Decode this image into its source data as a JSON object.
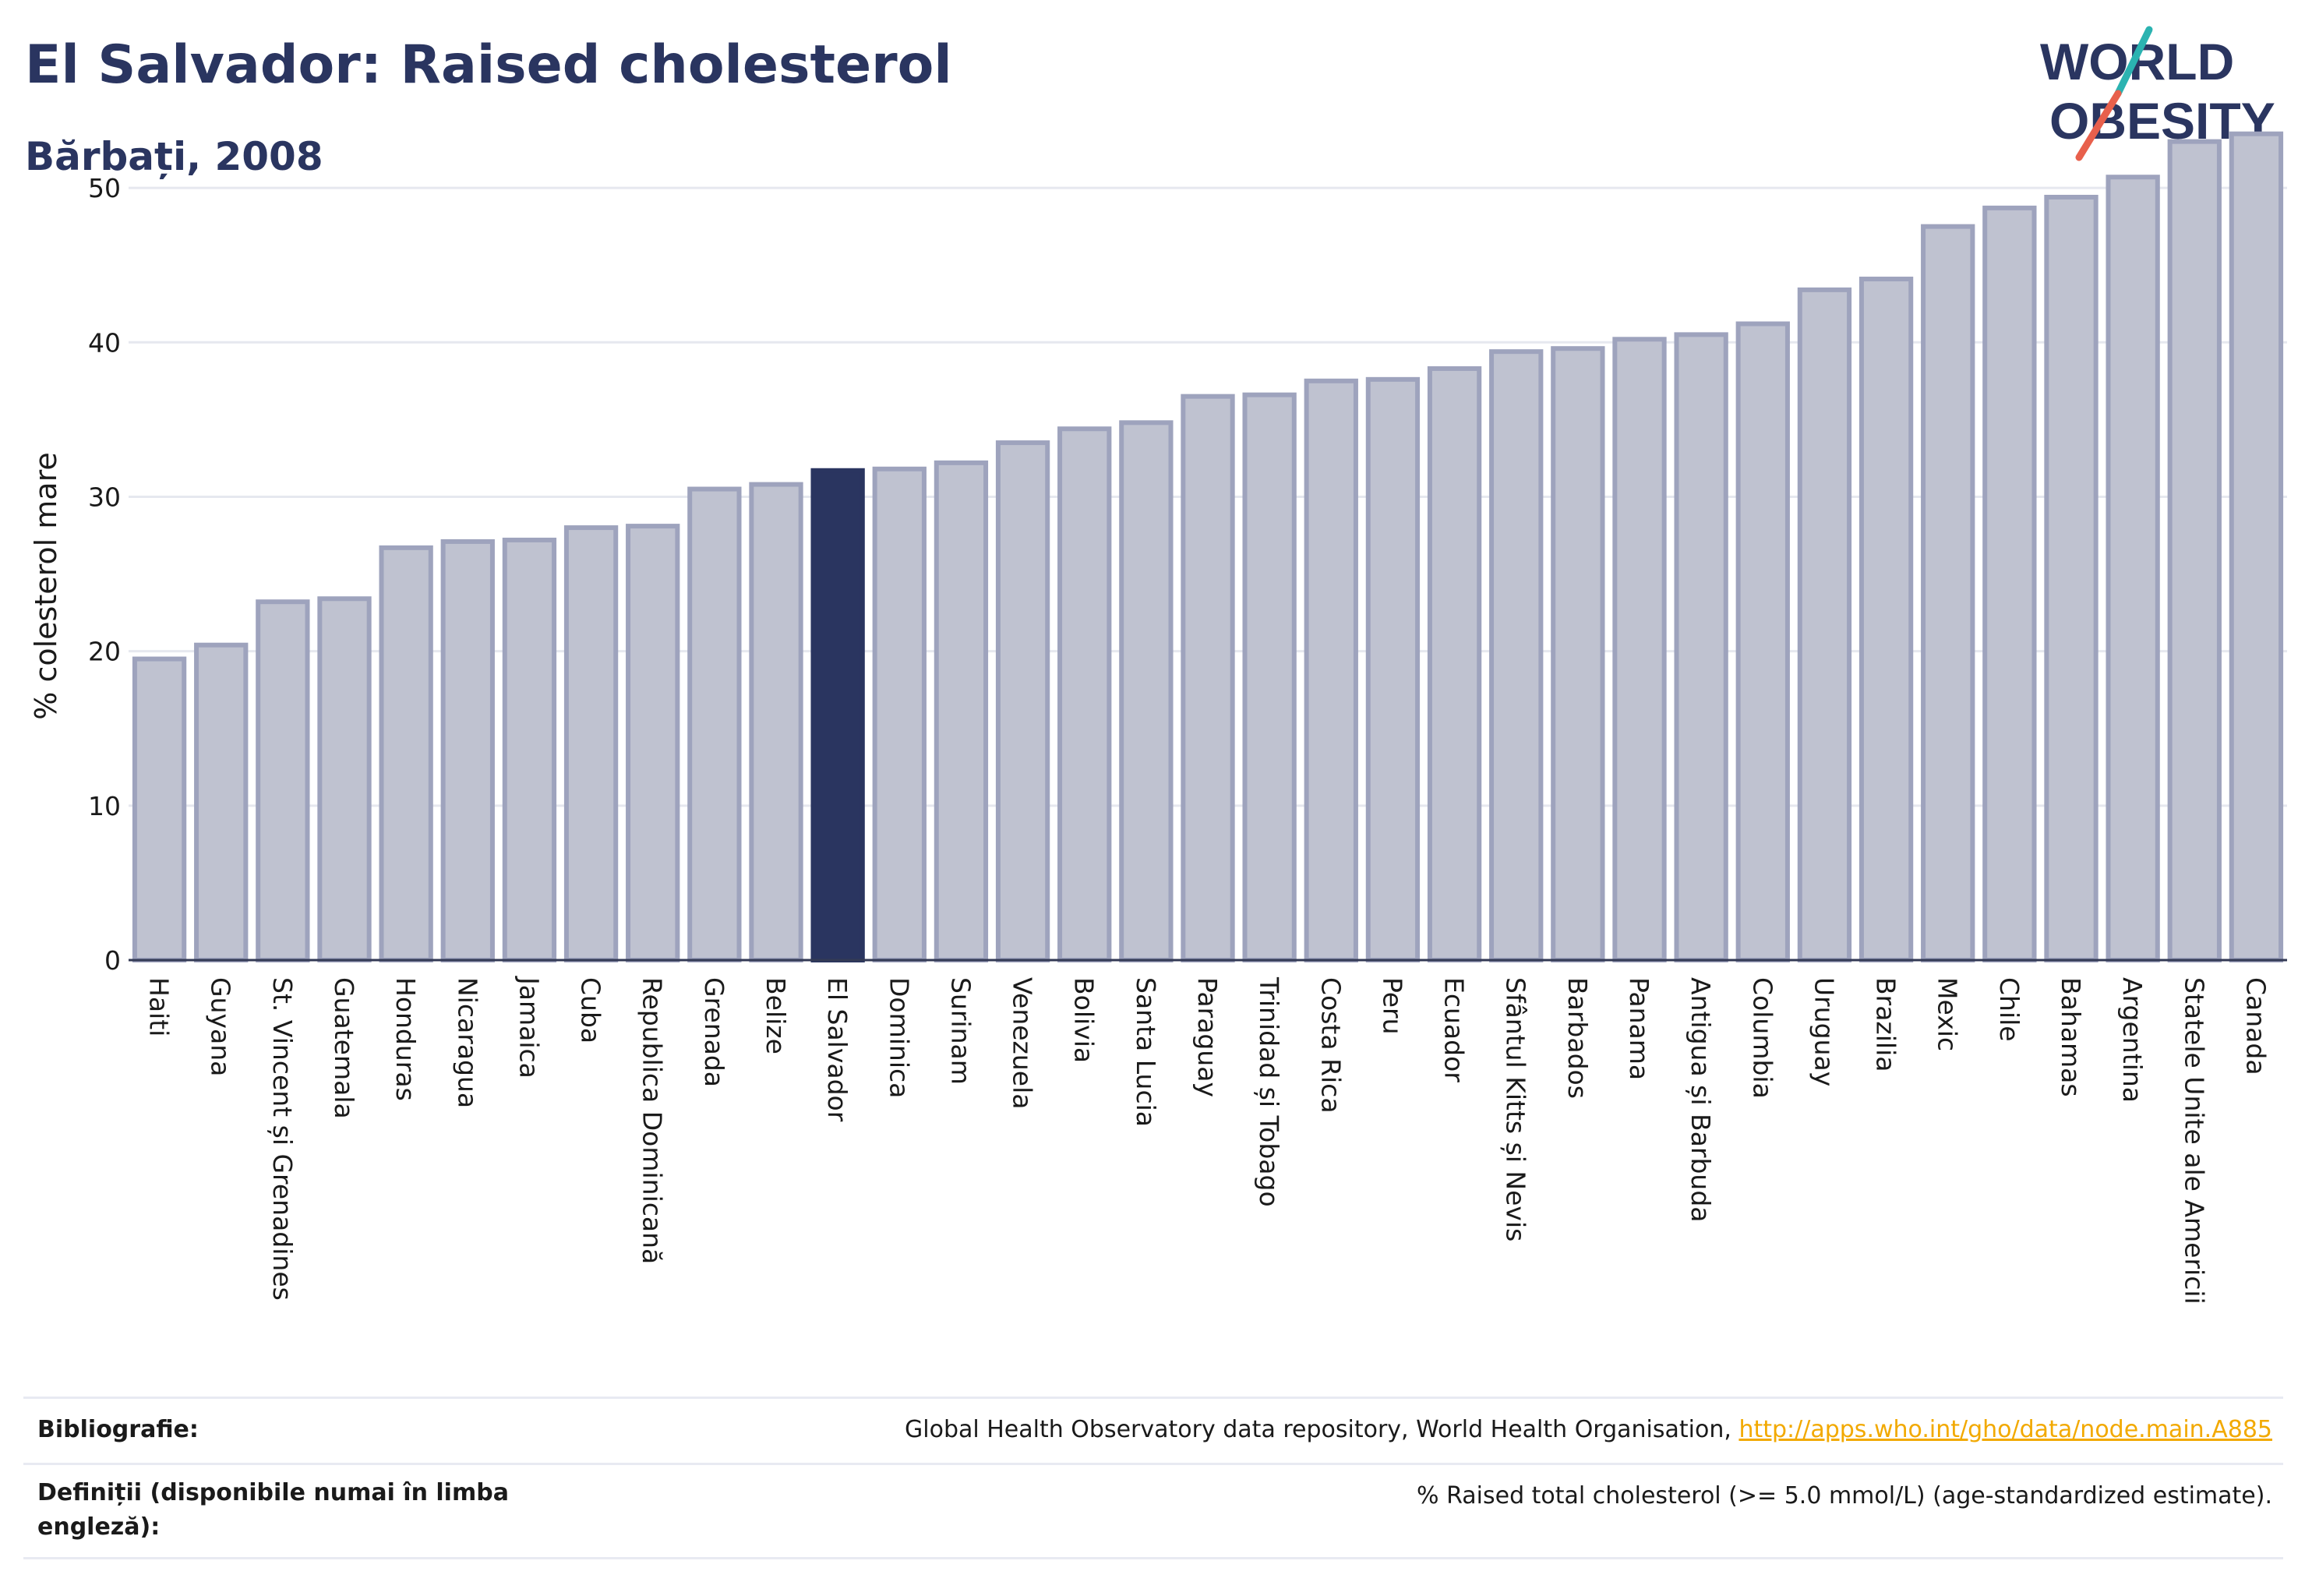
{
  "header": {
    "title": "El Salvador: Raised cholesterol",
    "subtitle": "Bărbați, 2008"
  },
  "logo": {
    "line1": "WORLD",
    "line2": "OBESITY",
    "accent_colors": [
      "#2bb3b1",
      "#e8604c"
    ]
  },
  "colors": {
    "highlight_bar": "#2a3560",
    "bar_fill": "#bfc2d0",
    "bar_stroke": "#9ea3bd",
    "text_primary": "#2a3560"
  },
  "chart_data": {
    "type": "bar",
    "ylabel": "% colesterol mare",
    "xlabel": "",
    "ylim": [
      0,
      55
    ],
    "yticks": [
      0,
      10,
      20,
      30,
      40,
      50
    ],
    "grid": true,
    "highlight": "El Salvador",
    "categories": [
      "Haiti",
      "Guyana",
      "St. Vincent și Grenadines",
      "Guatemala",
      "Honduras",
      "Nicaragua",
      "Jamaica",
      "Cuba",
      "Republica Dominicană",
      "Grenada",
      "Belize",
      "El Salvador",
      "Dominica",
      "Surinam",
      "Venezuela",
      "Bolivia",
      "Santa Lucia",
      "Paraguay",
      "Trinidad și Tobago",
      "Costa Rica",
      "Peru",
      "Ecuador",
      "Sfântul Kitts și Nevis",
      "Barbados",
      "Panama",
      "Antigua și Barbuda",
      "Columbia",
      "Uruguay",
      "Brazilia",
      "Mexic",
      "Chile",
      "Bahamas",
      "Argentina",
      "Statele Unite ale Americii",
      "Canada"
    ],
    "values": [
      19.5,
      20.4,
      23.2,
      23.4,
      26.7,
      27.1,
      27.2,
      28.0,
      28.1,
      30.5,
      30.8,
      31.7,
      31.8,
      32.2,
      33.5,
      34.4,
      34.8,
      36.5,
      36.6,
      37.5,
      37.6,
      38.3,
      39.4,
      39.6,
      40.2,
      40.5,
      41.2,
      43.4,
      44.1,
      47.5,
      48.7,
      49.4,
      50.7,
      53.0,
      53.5
    ]
  },
  "footer": {
    "bibliography_label": "Bibliografie:",
    "bibliography_text": "Global Health Observatory data repository, World Health Organisation, ",
    "bibliography_link": "http://apps.who.int/gho/data/node.main.A885",
    "definitions_label": "Definiții (disponibile numai în limba engleză):",
    "definitions_text": "% Raised total cholesterol (>= 5.0 mmol/L) (age-standardized estimate)."
  }
}
